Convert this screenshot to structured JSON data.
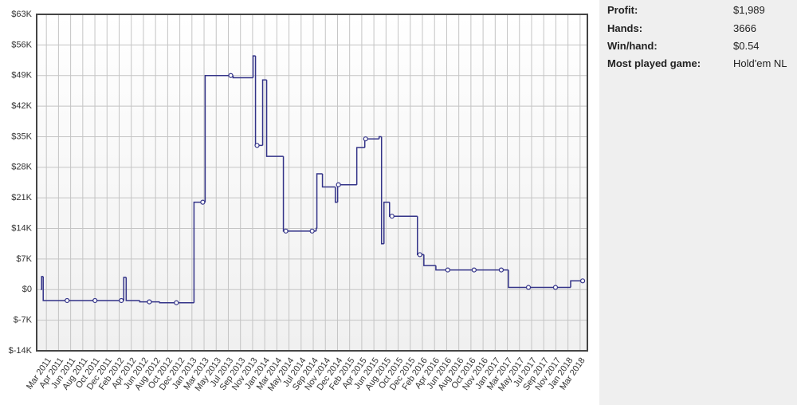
{
  "chart_data": {
    "type": "line",
    "step": "after",
    "color": "#333388",
    "ylim": [
      -14000,
      63000
    ],
    "yticks": [
      {
        "value": -14000,
        "label": "$-14K"
      },
      {
        "value": -7000,
        "label": "$-7K"
      },
      {
        "value": 0,
        "label": "$0"
      },
      {
        "value": 7000,
        "label": "$7K"
      },
      {
        "value": 14000,
        "label": "$14K"
      },
      {
        "value": 21000,
        "label": "$21K"
      },
      {
        "value": 28000,
        "label": "$28K"
      },
      {
        "value": 35000,
        "label": "$35K"
      },
      {
        "value": 42000,
        "label": "$42K"
      },
      {
        "value": 49000,
        "label": "$49K"
      },
      {
        "value": 56000,
        "label": "$56K"
      },
      {
        "value": 63000,
        "label": "$63K"
      }
    ],
    "xlim": [
      -0.8,
      44.6
    ],
    "xticks": [
      {
        "value": 0,
        "label": "Mar 2011"
      },
      {
        "value": 1,
        "label": "Apr 2011"
      },
      {
        "value": 2,
        "label": "Jun 2011"
      },
      {
        "value": 3,
        "label": "Aug 2011"
      },
      {
        "value": 4,
        "label": "Oct 2011"
      },
      {
        "value": 5,
        "label": "Dec 2011"
      },
      {
        "value": 6,
        "label": "Feb 2012"
      },
      {
        "value": 7,
        "label": "Apr 2012"
      },
      {
        "value": 8,
        "label": "Jun 2012"
      },
      {
        "value": 9,
        "label": "Aug 2012"
      },
      {
        "value": 10,
        "label": "Oct 2012"
      },
      {
        "value": 11,
        "label": "Dec 2012"
      },
      {
        "value": 12,
        "label": "Jan 2013"
      },
      {
        "value": 13,
        "label": "Mar 2013"
      },
      {
        "value": 14,
        "label": "May 2013"
      },
      {
        "value": 15,
        "label": "Jul 2013"
      },
      {
        "value": 16,
        "label": "Sep 2013"
      },
      {
        "value": 17,
        "label": "Nov 2013"
      },
      {
        "value": 18,
        "label": "Jan 2014"
      },
      {
        "value": 19,
        "label": "Mar 2014"
      },
      {
        "value": 20,
        "label": "May 2014"
      },
      {
        "value": 21,
        "label": "Jul 2014"
      },
      {
        "value": 22,
        "label": "Sep 2014"
      },
      {
        "value": 23,
        "label": "Nov 2014"
      },
      {
        "value": 24,
        "label": "Dec 2014"
      },
      {
        "value": 25,
        "label": "Feb 2015"
      },
      {
        "value": 26,
        "label": "Apr 2015"
      },
      {
        "value": 27,
        "label": "Jun 2015"
      },
      {
        "value": 28,
        "label": "Aug 2015"
      },
      {
        "value": 29,
        "label": "Oct 2015"
      },
      {
        "value": 30,
        "label": "Dec 2015"
      },
      {
        "value": 31,
        "label": "Feb 2016"
      },
      {
        "value": 32,
        "label": "Apr 2016"
      },
      {
        "value": 33,
        "label": "Jun 2016"
      },
      {
        "value": 34,
        "label": "Aug 2016"
      },
      {
        "value": 35,
        "label": "Oct 2016"
      },
      {
        "value": 36,
        "label": "Nov 2016"
      },
      {
        "value": 37,
        "label": "Jan 2017"
      },
      {
        "value": 38,
        "label": "Mar 2017"
      },
      {
        "value": 39,
        "label": "May 2017"
      },
      {
        "value": 40,
        "label": "Jul 2017"
      },
      {
        "value": 41,
        "label": "Sep 2017"
      },
      {
        "value": 42,
        "label": "Nov 2017"
      },
      {
        "value": 43,
        "label": "Jan 2018"
      },
      {
        "value": 44,
        "label": "Mar 2018"
      }
    ],
    "grid": true,
    "x": [
      -0.46,
      -0.39,
      -0.26,
      6.38,
      6.58,
      7.7,
      9.34,
      12.17,
      13.09,
      15.39,
      17.04,
      17.24,
      17.83,
      18.16,
      19.54,
      22.24,
      22.3,
      22.76,
      23.82,
      24.01,
      25.59,
      26.25,
      27.43,
      27.63,
      27.83,
      28.29,
      30.59,
      31.12,
      32.11,
      38.09,
      43.22,
      44.21
    ],
    "values": [
      0,
      3000,
      -2500,
      2800,
      -2500,
      -2800,
      -3000,
      20000,
      49000,
      48500,
      53500,
      33000,
      48000,
      30500,
      13400,
      14000,
      26500,
      23500,
      20000,
      24000,
      32500,
      34500,
      35000,
      10500,
      20000,
      16800,
      8000,
      5500,
      4500,
      500,
      2000,
      2000
    ],
    "markers": {
      "x": [
        1.71,
        4.01,
        6.18,
        8.49,
        10.72,
        12.89,
        15.2,
        17.37,
        19.74,
        21.91,
        24.08,
        26.32,
        28.49,
        30.79,
        33.09,
        35.26,
        37.5,
        39.74,
        41.97,
        44.21
      ],
      "values": [
        -2500,
        -2500,
        -2500,
        -2800,
        -3000,
        20000,
        49000,
        33000,
        13400,
        13400,
        24000,
        34500,
        16800,
        8000,
        4500,
        4500,
        4500,
        500,
        500,
        2000
      ]
    }
  },
  "stats": [
    {
      "label": "Profit:",
      "value": "$1,989"
    },
    {
      "label": "Hands:",
      "value": "3666"
    },
    {
      "label": "Win/hand:",
      "value": "$0.54"
    },
    {
      "label": "Most played game:",
      "value": "Hold'em NL"
    }
  ]
}
